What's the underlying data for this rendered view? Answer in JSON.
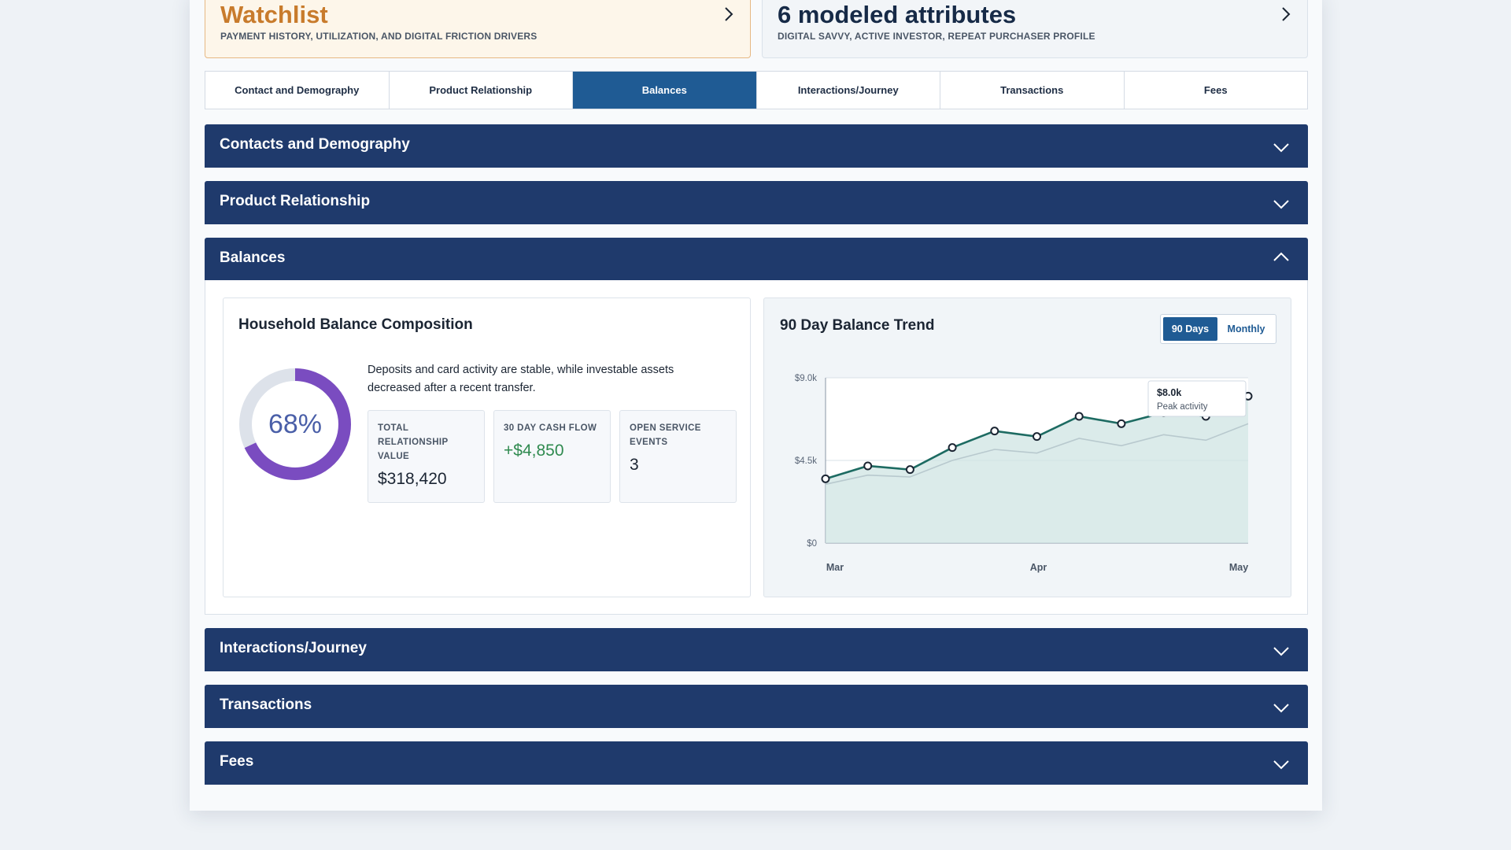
{
  "summary": {
    "watchlist": {
      "title": "Watchlist",
      "subtitle": "PAYMENT HISTORY, UTILIZATION, AND DIGITAL FRICTION DRIVERS"
    },
    "attributes": {
      "title": "6 modeled attributes",
      "subtitle": "DIGITAL SAVVY, ACTIVE INVESTOR, REPEAT PURCHASER PROFILE"
    }
  },
  "tabs": [
    {
      "label": "Contact and Demography"
    },
    {
      "label": "Product Relationship"
    },
    {
      "label": "Balances",
      "active": true
    },
    {
      "label": "Interactions/Journey"
    },
    {
      "label": "Transactions"
    },
    {
      "label": "Fees"
    }
  ],
  "sections": [
    {
      "title": "Contacts and Demography",
      "expanded": false
    },
    {
      "title": "Product Relationship",
      "expanded": false
    },
    {
      "title": "Balances",
      "expanded": true
    },
    {
      "title": "Interactions/Journey",
      "expanded": false
    },
    {
      "title": "Transactions",
      "expanded": false
    },
    {
      "title": "Fees",
      "expanded": false
    }
  ],
  "composition": {
    "title": "Household Balance Composition",
    "donut_percent": 68,
    "donut_label": "68%",
    "description": "Deposits and card activity are stable, while investable assets decreased after a recent transfer.",
    "metrics": [
      {
        "label": "TOTAL RELATIONSHIP VALUE",
        "value": "$318,420"
      },
      {
        "label": "30 DAY CASH FLOW",
        "value": "+$4,850"
      },
      {
        "label": "OPEN SERVICE EVENTS",
        "value": "3"
      }
    ]
  },
  "trend": {
    "title": "90 Day Balance Trend",
    "toggle": {
      "active": "90 Days",
      "inactive": "Monthly"
    },
    "tooltip": {
      "value": "$8.0k",
      "label": "Peak activity"
    }
  },
  "colors": {
    "navy": "#1f3a6c",
    "accent": "#1f5b94",
    "orange": "#c87b2c",
    "donut": "#7a4cc0",
    "line": "#1d6b62",
    "green": "#2f8a4f"
  },
  "icons": {
    "chevron": "chevron-icon",
    "expand": "chevron-down-icon",
    "collapse": "chevron-up-icon"
  },
  "chart_data": {
    "type": "line",
    "y_ticks": [
      "$0",
      "$4.5k",
      "$9.0k"
    ],
    "x_ticks": [
      "Mar",
      "Apr",
      "May"
    ],
    "ylim": [
      0,
      9000
    ],
    "series": [
      {
        "values": [
          3500,
          4200,
          4000,
          5200,
          6100,
          5800,
          6900,
          6500,
          7100,
          6900,
          8000
        ]
      },
      {
        "values": [
          3200,
          3700,
          3600,
          4500,
          5100,
          4900,
          5700,
          5300,
          5900,
          5600,
          6500
        ]
      }
    ]
  }
}
